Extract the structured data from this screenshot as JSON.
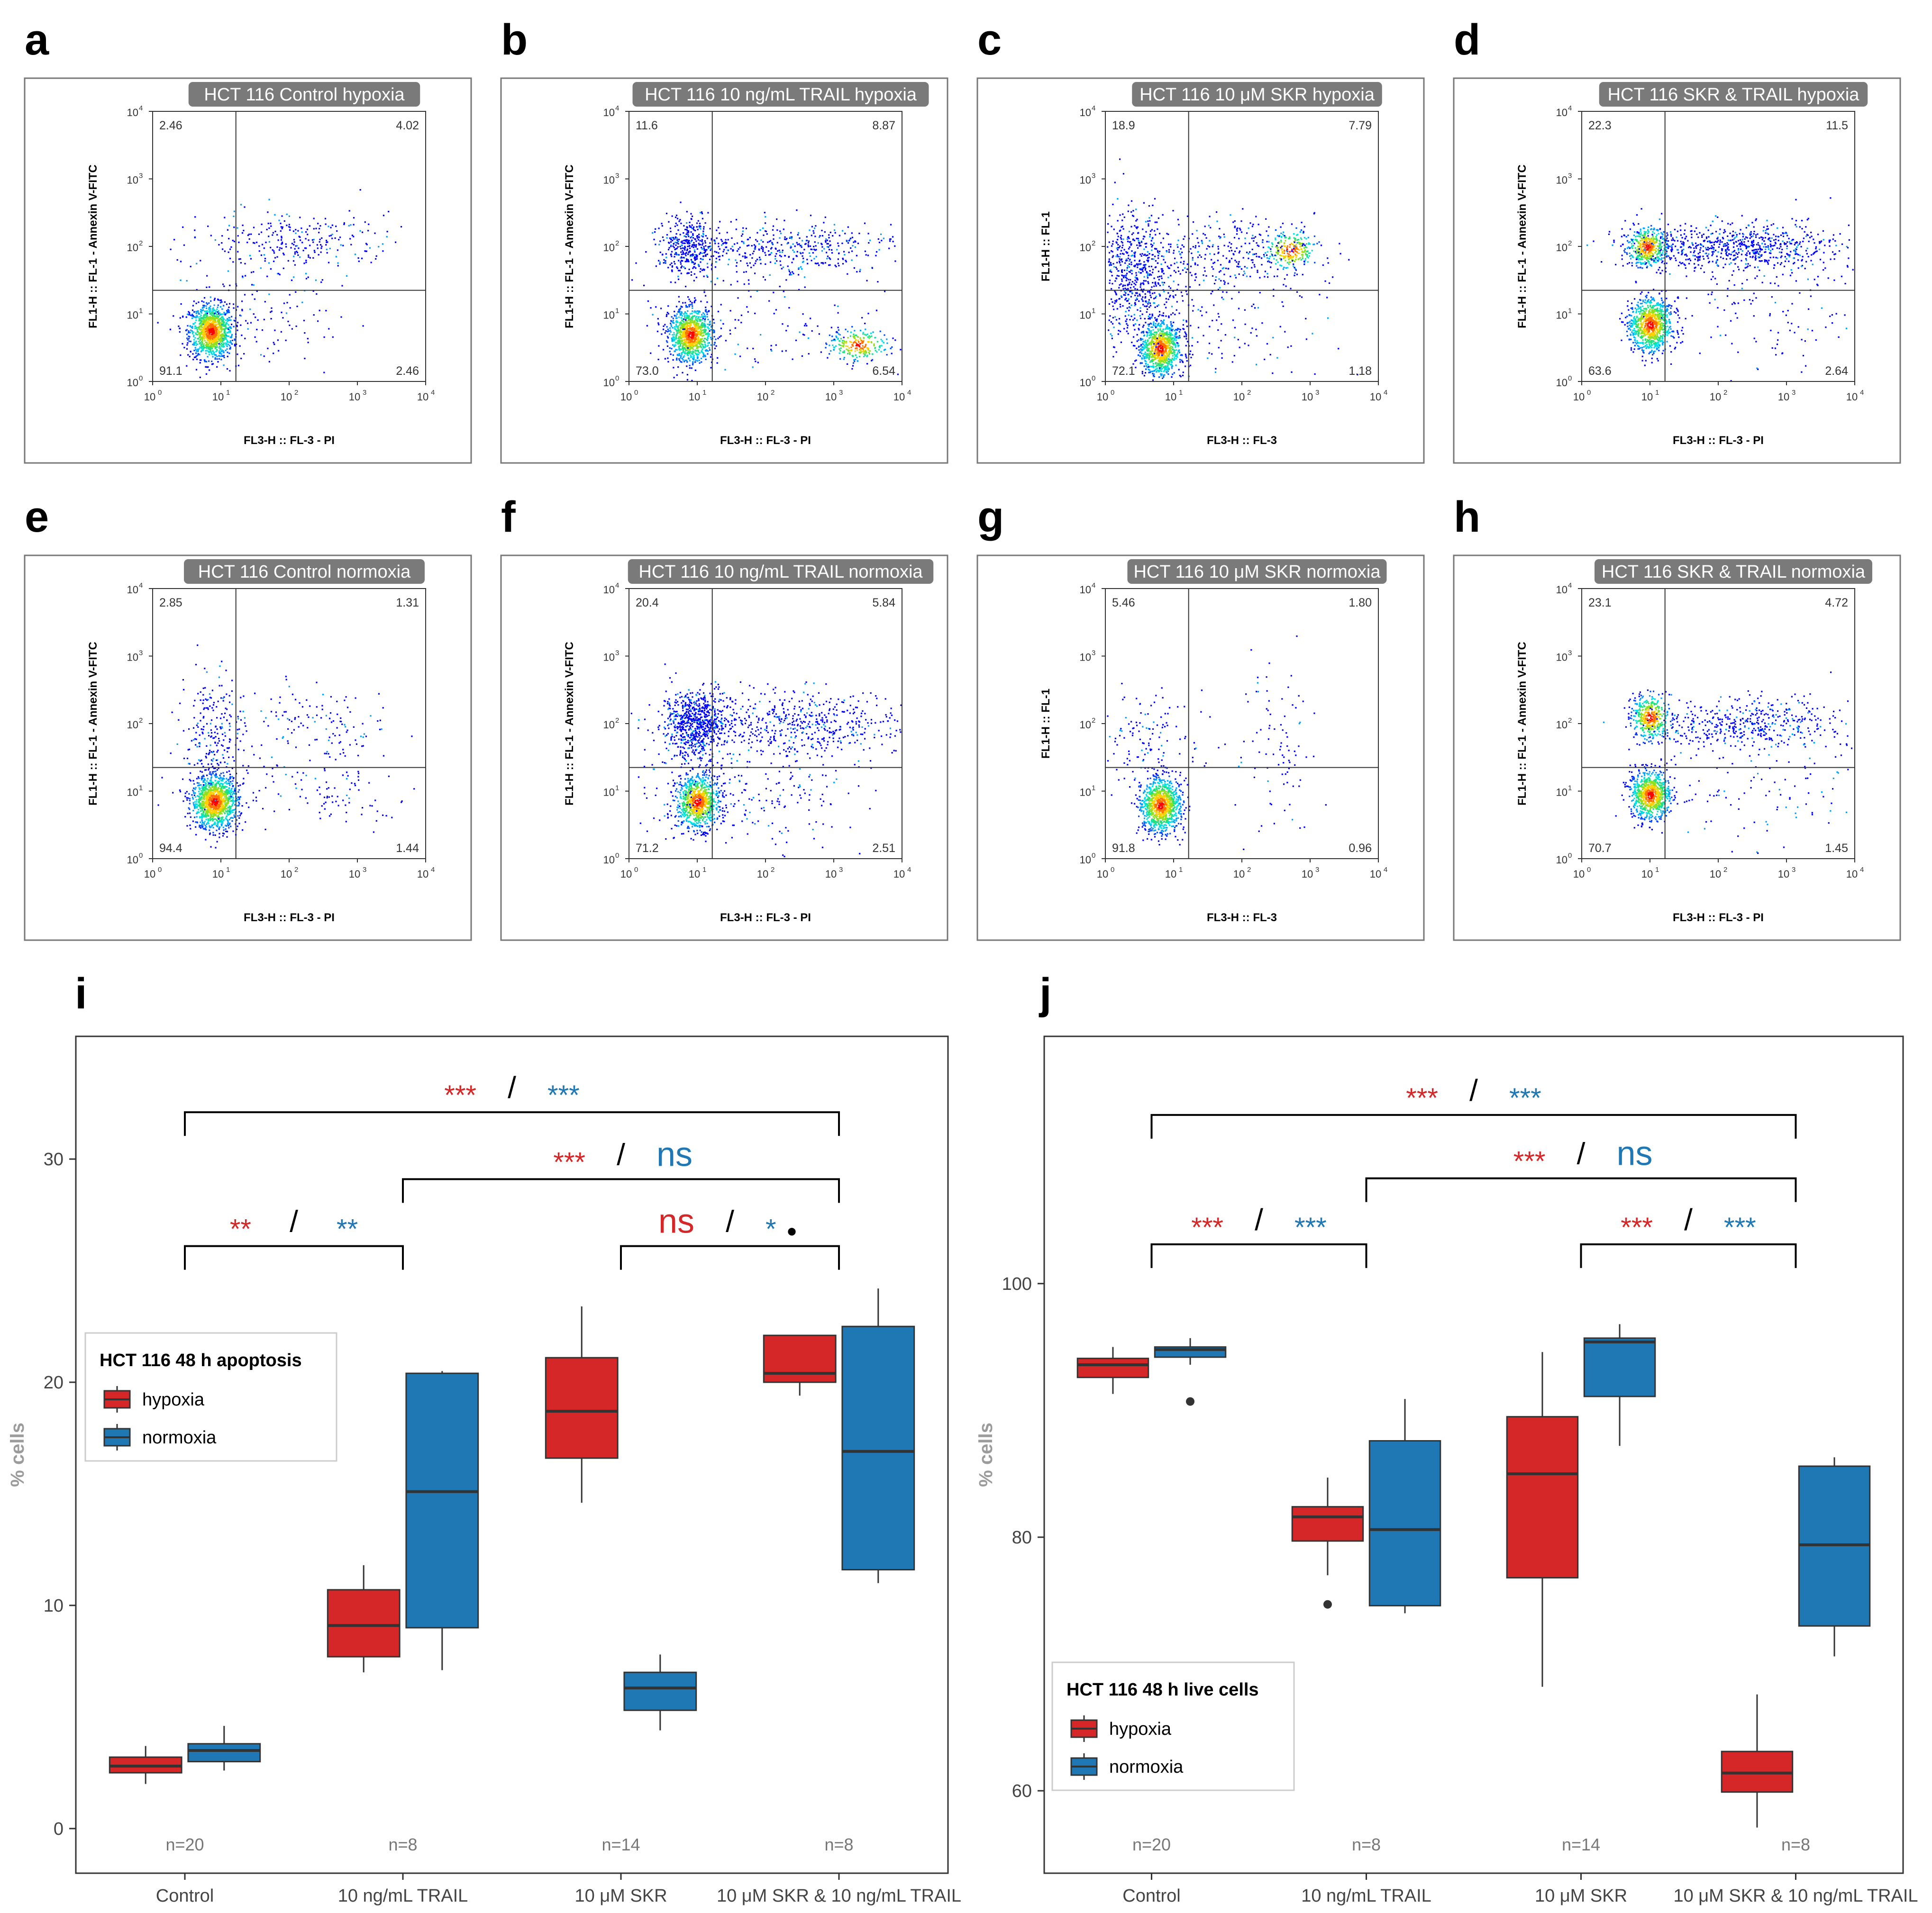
{
  "panel_letters": [
    "a",
    "b",
    "c",
    "d",
    "e",
    "f",
    "g",
    "h",
    "i",
    "j"
  ],
  "flow_panels": [
    {
      "letter": "a",
      "title": "HCT 116 Control hypoxia",
      "xlabel": "FL3-H :: FL-3 - PI",
      "ylabel": "FL1-H :: FL-1 - Annexin V-FITC",
      "q_ul": "2.46",
      "q_ur": "4.02",
      "q_ll": "91.1",
      "q_lr": "2.46",
      "pattern": "control_h"
    },
    {
      "letter": "b",
      "title": "HCT 116 10 ng/mL TRAIL hypoxia",
      "xlabel": "FL3-H :: FL-3 - PI",
      "ylabel": "FL1-H :: FL-1 - Annexin V-FITC",
      "q_ul": "11.6",
      "q_ur": "8.87",
      "q_ll": "73.0",
      "q_lr": "6.54",
      "pattern": "trail_h"
    },
    {
      "letter": "c",
      "title": "HCT 116 10 μM SKR hypoxia",
      "xlabel": "FL3-H :: FL-3",
      "ylabel": "FL1-H :: FL-1",
      "q_ul": "18.9",
      "q_ur": "7.79",
      "q_ll": "72.1",
      "q_lr": "1.18",
      "pattern": "skr_h"
    },
    {
      "letter": "d",
      "title": "HCT 116 SKR & TRAIL hypoxia",
      "xlabel": "FL3-H :: FL-3 - PI",
      "ylabel": "FL1-H :: FL-1 - Annexin V-FITC",
      "q_ul": "22.3",
      "q_ur": "11.5",
      "q_ll": "63.6",
      "q_lr": "2.64",
      "pattern": "combo_h"
    },
    {
      "letter": "e",
      "title": "HCT 116 Control normoxia",
      "xlabel": "FL3-H :: FL-3 - PI",
      "ylabel": "FL1-H :: FL-1 - Annexin V-FITC",
      "q_ul": "2.85",
      "q_ur": "1.31",
      "q_ll": "94.4",
      "q_lr": "1.44",
      "pattern": "control_n"
    },
    {
      "letter": "f",
      "title": "HCT 116 10 ng/mL TRAIL normoxia",
      "xlabel": "FL3-H :: FL-3 - PI",
      "ylabel": "FL1-H :: FL-1 - Annexin V-FITC",
      "q_ul": "20.4",
      "q_ur": "5.84",
      "q_ll": "71.2",
      "q_lr": "2.51",
      "pattern": "trail_n"
    },
    {
      "letter": "g",
      "title": "HCT 116 10 μM SKR normoxia",
      "xlabel": "FL3-H :: FL-3",
      "ylabel": "FL1-H :: FL-1",
      "q_ul": "5.46",
      "q_ur": "1.80",
      "q_ll": "91.8",
      "q_lr": "0.96",
      "pattern": "skr_n"
    },
    {
      "letter": "h",
      "title": "HCT 116 SKR & TRAIL normoxia",
      "xlabel": "FL3-H :: FL-3 - PI",
      "ylabel": "FL1-H :: FL-1 - Annexin V-FITC",
      "q_ul": "23.1",
      "q_ur": "4.72",
      "q_ll": "70.7",
      "q_lr": "1.45",
      "pattern": "combo_n"
    }
  ],
  "flow_axis": {
    "tick_base": "10",
    "tick_exps": [
      "0",
      "1",
      "2",
      "3",
      "4"
    ]
  },
  "colors": {
    "hypoxia": "#d62728",
    "normoxia": "#1f77b4",
    "bracket": "#000000",
    "n_label": "#777777"
  },
  "chart_data": [
    {
      "type": "box",
      "letter": "i",
      "ylabel": "% cells",
      "ylim": [
        -2,
        35.5
      ],
      "yticks": [
        0,
        10,
        20,
        30
      ],
      "ytick_labels": [
        "0",
        "10",
        "20",
        "30"
      ],
      "categories": [
        "Control",
        "10 ng/mL TRAIL",
        "10 μM SKR",
        "10 μM SKR & 10 ng/mL TRAIL"
      ],
      "n_labels": [
        "n=20",
        "n=8",
        "n=14",
        "n=8"
      ],
      "legend": {
        "title": "HCT 116 48 h apoptosis",
        "items": [
          "hypoxia",
          "normoxia"
        ]
      },
      "series": [
        {
          "name": "hypoxia",
          "boxes": [
            {
              "min": 2.0,
              "q1": 2.5,
              "median": 2.8,
              "q3": 3.2,
              "max": 3.7,
              "outliers": []
            },
            {
              "min": 7.0,
              "q1": 7.7,
              "median": 9.1,
              "q3": 10.7,
              "max": 11.8,
              "outliers": []
            },
            {
              "min": 14.6,
              "q1": 16.6,
              "median": 18.7,
              "q3": 21.1,
              "max": 23.4,
              "outliers": []
            },
            {
              "min": 19.4,
              "q1": 20.0,
              "median": 20.4,
              "q3": 22.1,
              "max": 22.1,
              "outliers": []
            }
          ]
        },
        {
          "name": "normoxia",
          "boxes": [
            {
              "min": 2.6,
              "q1": 3.0,
              "median": 3.5,
              "q3": 3.8,
              "max": 4.6,
              "outliers": []
            },
            {
              "min": 7.1,
              "q1": 9.0,
              "median": 15.1,
              "q3": 20.4,
              "max": 20.5,
              "outliers": []
            },
            {
              "min": 4.4,
              "q1": 5.3,
              "median": 6.3,
              "q3": 7.0,
              "max": 7.8,
              "outliers": []
            },
            {
              "min": 11.0,
              "q1": 11.6,
              "median": 16.9,
              "q3": 22.5,
              "max": 24.2,
              "outliers": []
            }
          ]
        }
      ],
      "comparisons": [
        {
          "from": 0,
          "to": 3,
          "y": 32.1,
          "left": "***",
          "right": "***"
        },
        {
          "from": 1,
          "to": 3,
          "y": 29.1,
          "left": "***",
          "right": "ns"
        },
        {
          "from": 0,
          "to": 1,
          "y": 26.1,
          "left": "**",
          "right": "**"
        },
        {
          "from": 2,
          "to": 3,
          "y": 26.1,
          "left": "ns",
          "right": "*",
          "extra": "•"
        }
      ],
      "separator": "/"
    },
    {
      "type": "box",
      "letter": "j",
      "ylabel": "% cells",
      "ylim": [
        53.5,
        119.5
      ],
      "yticks": [
        60,
        80,
        100
      ],
      "ytick_labels": [
        "60",
        "80",
        "100"
      ],
      "categories": [
        "Control",
        "10 ng/mL TRAIL",
        "10 μM SKR",
        "10 μM SKR & 10 ng/mL TRAIL"
      ],
      "n_labels": [
        "n=20",
        "n=8",
        "n=14",
        "n=8"
      ],
      "legend": {
        "title": "HCT 116 48 h live cells",
        "items": [
          "hypoxia",
          "normoxia"
        ]
      },
      "series": [
        {
          "name": "hypoxia",
          "boxes": [
            {
              "min": 91.3,
              "q1": 92.6,
              "median": 93.6,
              "q3": 94.1,
              "max": 95.0,
              "outliers": []
            },
            {
              "min": 77.0,
              "q1": 79.7,
              "median": 81.6,
              "q3": 82.4,
              "max": 84.7,
              "outliers": [
                74.7
              ]
            },
            {
              "min": 68.2,
              "q1": 76.8,
              "median": 85.0,
              "q3": 89.5,
              "max": 94.6,
              "outliers": []
            },
            {
              "min": 57.1,
              "q1": 59.9,
              "median": 61.4,
              "q3": 63.1,
              "max": 67.6,
              "outliers": []
            }
          ]
        },
        {
          "name": "normoxia",
          "boxes": [
            {
              "min": 93.6,
              "q1": 94.2,
              "median": 94.8,
              "q3": 95.0,
              "max": 95.7,
              "outliers": [
                90.7
              ]
            },
            {
              "min": 74.0,
              "q1": 74.6,
              "median": 80.6,
              "q3": 87.6,
              "max": 90.9,
              "outliers": []
            },
            {
              "min": 87.2,
              "q1": 91.1,
              "median": 95.4,
              "q3": 95.7,
              "max": 96.8,
              "outliers": []
            },
            {
              "min": 70.6,
              "q1": 73.0,
              "median": 79.4,
              "q3": 85.6,
              "max": 86.3,
              "outliers": []
            }
          ]
        }
      ],
      "comparisons": [
        {
          "from": 0,
          "to": 3,
          "y": 113.3,
          "left": "***",
          "right": "***"
        },
        {
          "from": 1,
          "to": 3,
          "y": 108.3,
          "left": "***",
          "right": "ns"
        },
        {
          "from": 0,
          "to": 1,
          "y": 103.1,
          "left": "***",
          "right": "***"
        },
        {
          "from": 2,
          "to": 3,
          "y": 103.1,
          "left": "***",
          "right": "***"
        }
      ],
      "separator": "/"
    }
  ]
}
